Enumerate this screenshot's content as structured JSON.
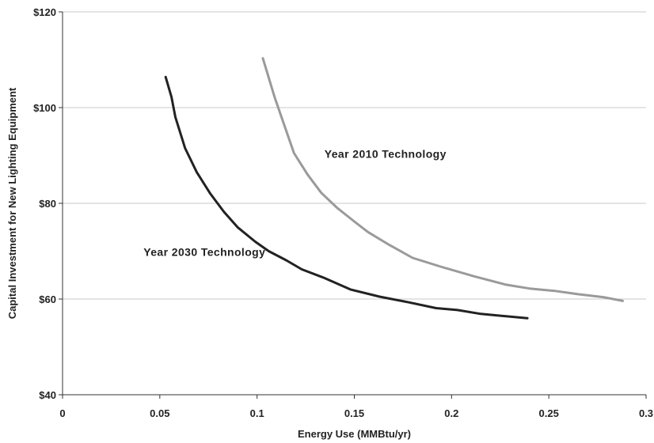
{
  "chart_data": {
    "type": "line",
    "title": "",
    "xlabel": "Energy Use (MMBtu/yr)",
    "ylabel": "Capital Investment for New Lighting Equipment",
    "xlim": [
      0,
      0.3
    ],
    "ylim": [
      40,
      120
    ],
    "x_ticks": [
      "0",
      "0.05",
      "0.1",
      "0.15",
      "0.2",
      "0.25",
      "0.3"
    ],
    "y_ticks": [
      "$40",
      "$60",
      "$80",
      "$100",
      "$120"
    ],
    "grid": "horizontal",
    "legend": "none",
    "series": [
      {
        "name": "Year 2010 Technology",
        "color": "#9a9a9a",
        "x": [
          0.103,
          0.109,
          0.113,
          0.119,
          0.126,
          0.133,
          0.141,
          0.15,
          0.157,
          0.168,
          0.18,
          0.195,
          0.212,
          0.228,
          0.24,
          0.253,
          0.265,
          0.278,
          0.288
        ],
        "y": [
          110.3,
          102.2,
          97.5,
          90.5,
          86.0,
          82.2,
          79.1,
          76.2,
          74.0,
          71.3,
          68.6,
          66.7,
          64.7,
          63.0,
          62.2,
          61.7,
          61.0,
          60.4,
          59.6
        ]
      },
      {
        "name": "Year 2030 Technology",
        "color": "#222222",
        "x": [
          0.053,
          0.056,
          0.058,
          0.063,
          0.069,
          0.076,
          0.083,
          0.09,
          0.099,
          0.106,
          0.115,
          0.123,
          0.134,
          0.148,
          0.163,
          0.178,
          0.192,
          0.203,
          0.215,
          0.228,
          0.239
        ],
        "y": [
          106.4,
          102.2,
          98.0,
          91.5,
          86.5,
          82.0,
          78.2,
          75.0,
          72.0,
          70.0,
          68.1,
          66.2,
          64.5,
          62.0,
          60.5,
          59.3,
          58.1,
          57.7,
          56.9,
          56.4,
          56.0
        ]
      }
    ],
    "annotations": [
      {
        "text": "Year 2010 Technology",
        "x": 0.166,
        "y": 89.5
      },
      {
        "text": "Year 2030 Technology",
        "x": 0.073,
        "y": 69.0
      }
    ]
  }
}
